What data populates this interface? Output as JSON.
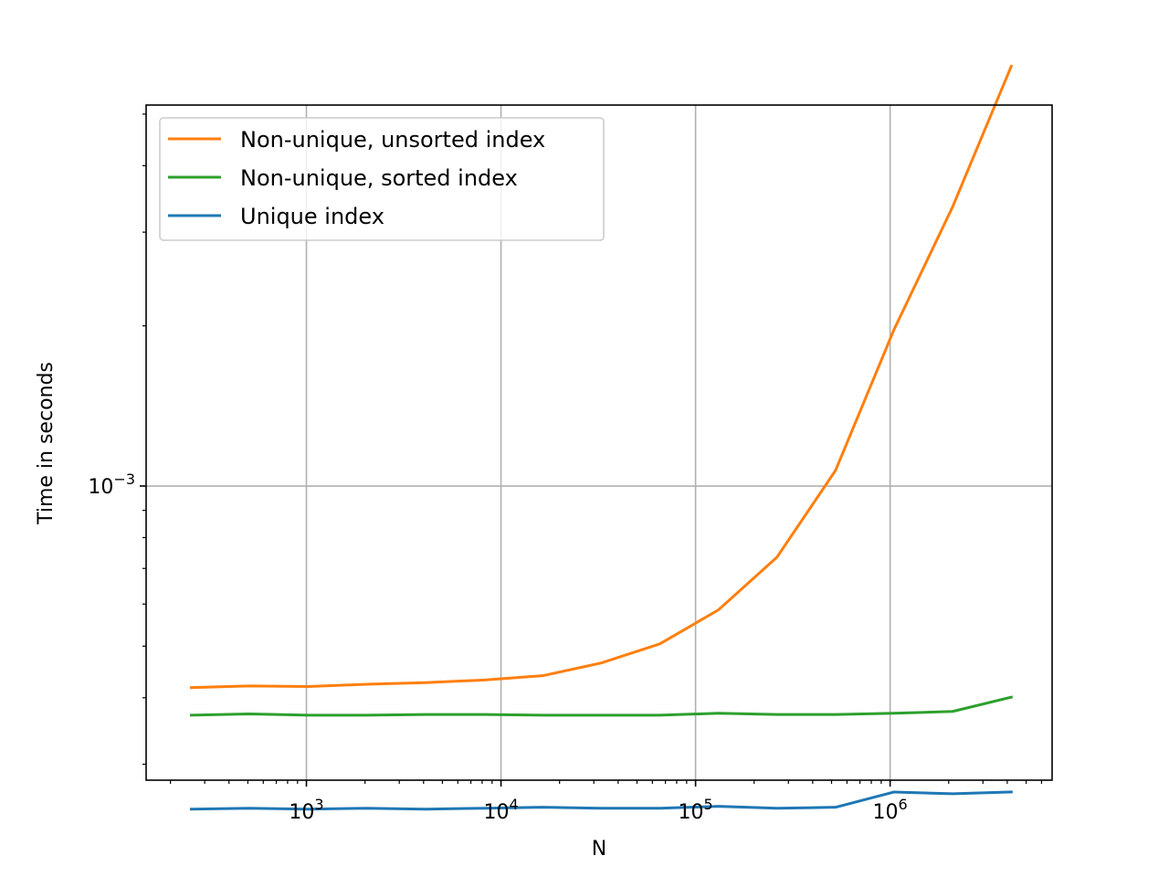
{
  "chart_data": {
    "type": "line",
    "xlabel": "N",
    "ylabel": "Time in seconds",
    "xscale": "log",
    "yscale": "log",
    "xlim": [
      150,
      6800000
    ],
    "ylim": [
      0.00028,
      0.0052
    ],
    "grid": true,
    "legend": "top-left",
    "x_ticks": [
      {
        "value": 1000,
        "base": "10",
        "exp": "3"
      },
      {
        "value": 10000,
        "base": "10",
        "exp": "4"
      },
      {
        "value": 100000,
        "base": "10",
        "exp": "5"
      },
      {
        "value": 1000000,
        "base": "10",
        "exp": "6"
      }
    ],
    "y_ticks": [
      {
        "value": 0.001,
        "base": "10",
        "exp": "−3"
      }
    ],
    "x": [
      256,
      512,
      1024,
      2048,
      4096,
      8192,
      16384,
      32768,
      65536,
      131072,
      262144,
      524288,
      1048576,
      2097152,
      4194304
    ],
    "series": [
      {
        "name": "Non-unique, unsorted index",
        "color": "#ff7f0e",
        "values": [
          0.000418,
          0.000421,
          0.00042,
          0.000424,
          0.000427,
          0.000432,
          0.00044,
          0.000465,
          0.000505,
          0.000585,
          0.000735,
          0.00107,
          0.00197,
          0.00335,
          0.00615
        ]
      },
      {
        "name": "Non-unique, sorted index",
        "color": "#2ca02c",
        "values": [
          0.000371,
          0.000373,
          0.000371,
          0.000371,
          0.000372,
          0.000372,
          0.000371,
          0.000371,
          0.000371,
          0.000374,
          0.000372,
          0.000372,
          0.000374,
          0.000377,
          0.000401
        ]
      },
      {
        "name": "Unique index",
        "color": "#1f77b4",
        "values": [
          0.000247,
          0.000248,
          0.000247,
          0.000248,
          0.000247,
          0.000248,
          0.000249,
          0.000248,
          0.000248,
          0.00025,
          0.000248,
          0.000249,
          0.000266,
          0.000264,
          0.000266
        ]
      }
    ]
  }
}
